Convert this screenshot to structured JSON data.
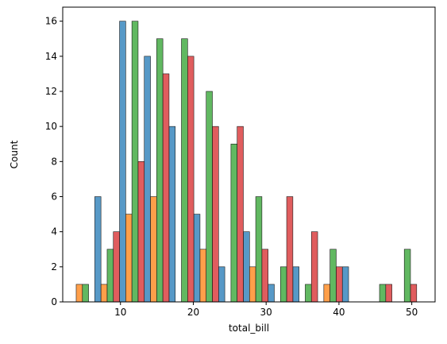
{
  "chart_data": {
    "type": "bar",
    "title": "",
    "xlabel": "total_bill",
    "ylabel": "Count",
    "xlim": [
      2.07,
      53.2
    ],
    "ylim": [
      0,
      16.8
    ],
    "xticks": [
      10,
      20,
      30,
      40,
      50
    ],
    "yticks": [
      0,
      2,
      4,
      6,
      8,
      10,
      12,
      14,
      16
    ],
    "grid": false,
    "legend": "none",
    "bin_start": 3.07,
    "bin_width": 3.4,
    "bin_count": 14,
    "series": [
      {
        "color": "#1f77b4",
        "values": [
          0,
          6,
          16,
          14,
          10,
          5,
          2,
          4,
          1,
          2,
          0,
          2,
          0,
          0
        ]
      },
      {
        "color": "#ff7f0e",
        "values": [
          1,
          1,
          5,
          6,
          0,
          3,
          0,
          2,
          0,
          0,
          1,
          0,
          0,
          0
        ]
      },
      {
        "color": "#2ca02c",
        "values": [
          1,
          3,
          16,
          15,
          15,
          12,
          9,
          6,
          2,
          1,
          3,
          0,
          1,
          3
        ]
      },
      {
        "color": "#d62728",
        "values": [
          0,
          4,
          8,
          13,
          14,
          10,
          10,
          3,
          6,
          4,
          2,
          0,
          1,
          1
        ]
      }
    ]
  }
}
